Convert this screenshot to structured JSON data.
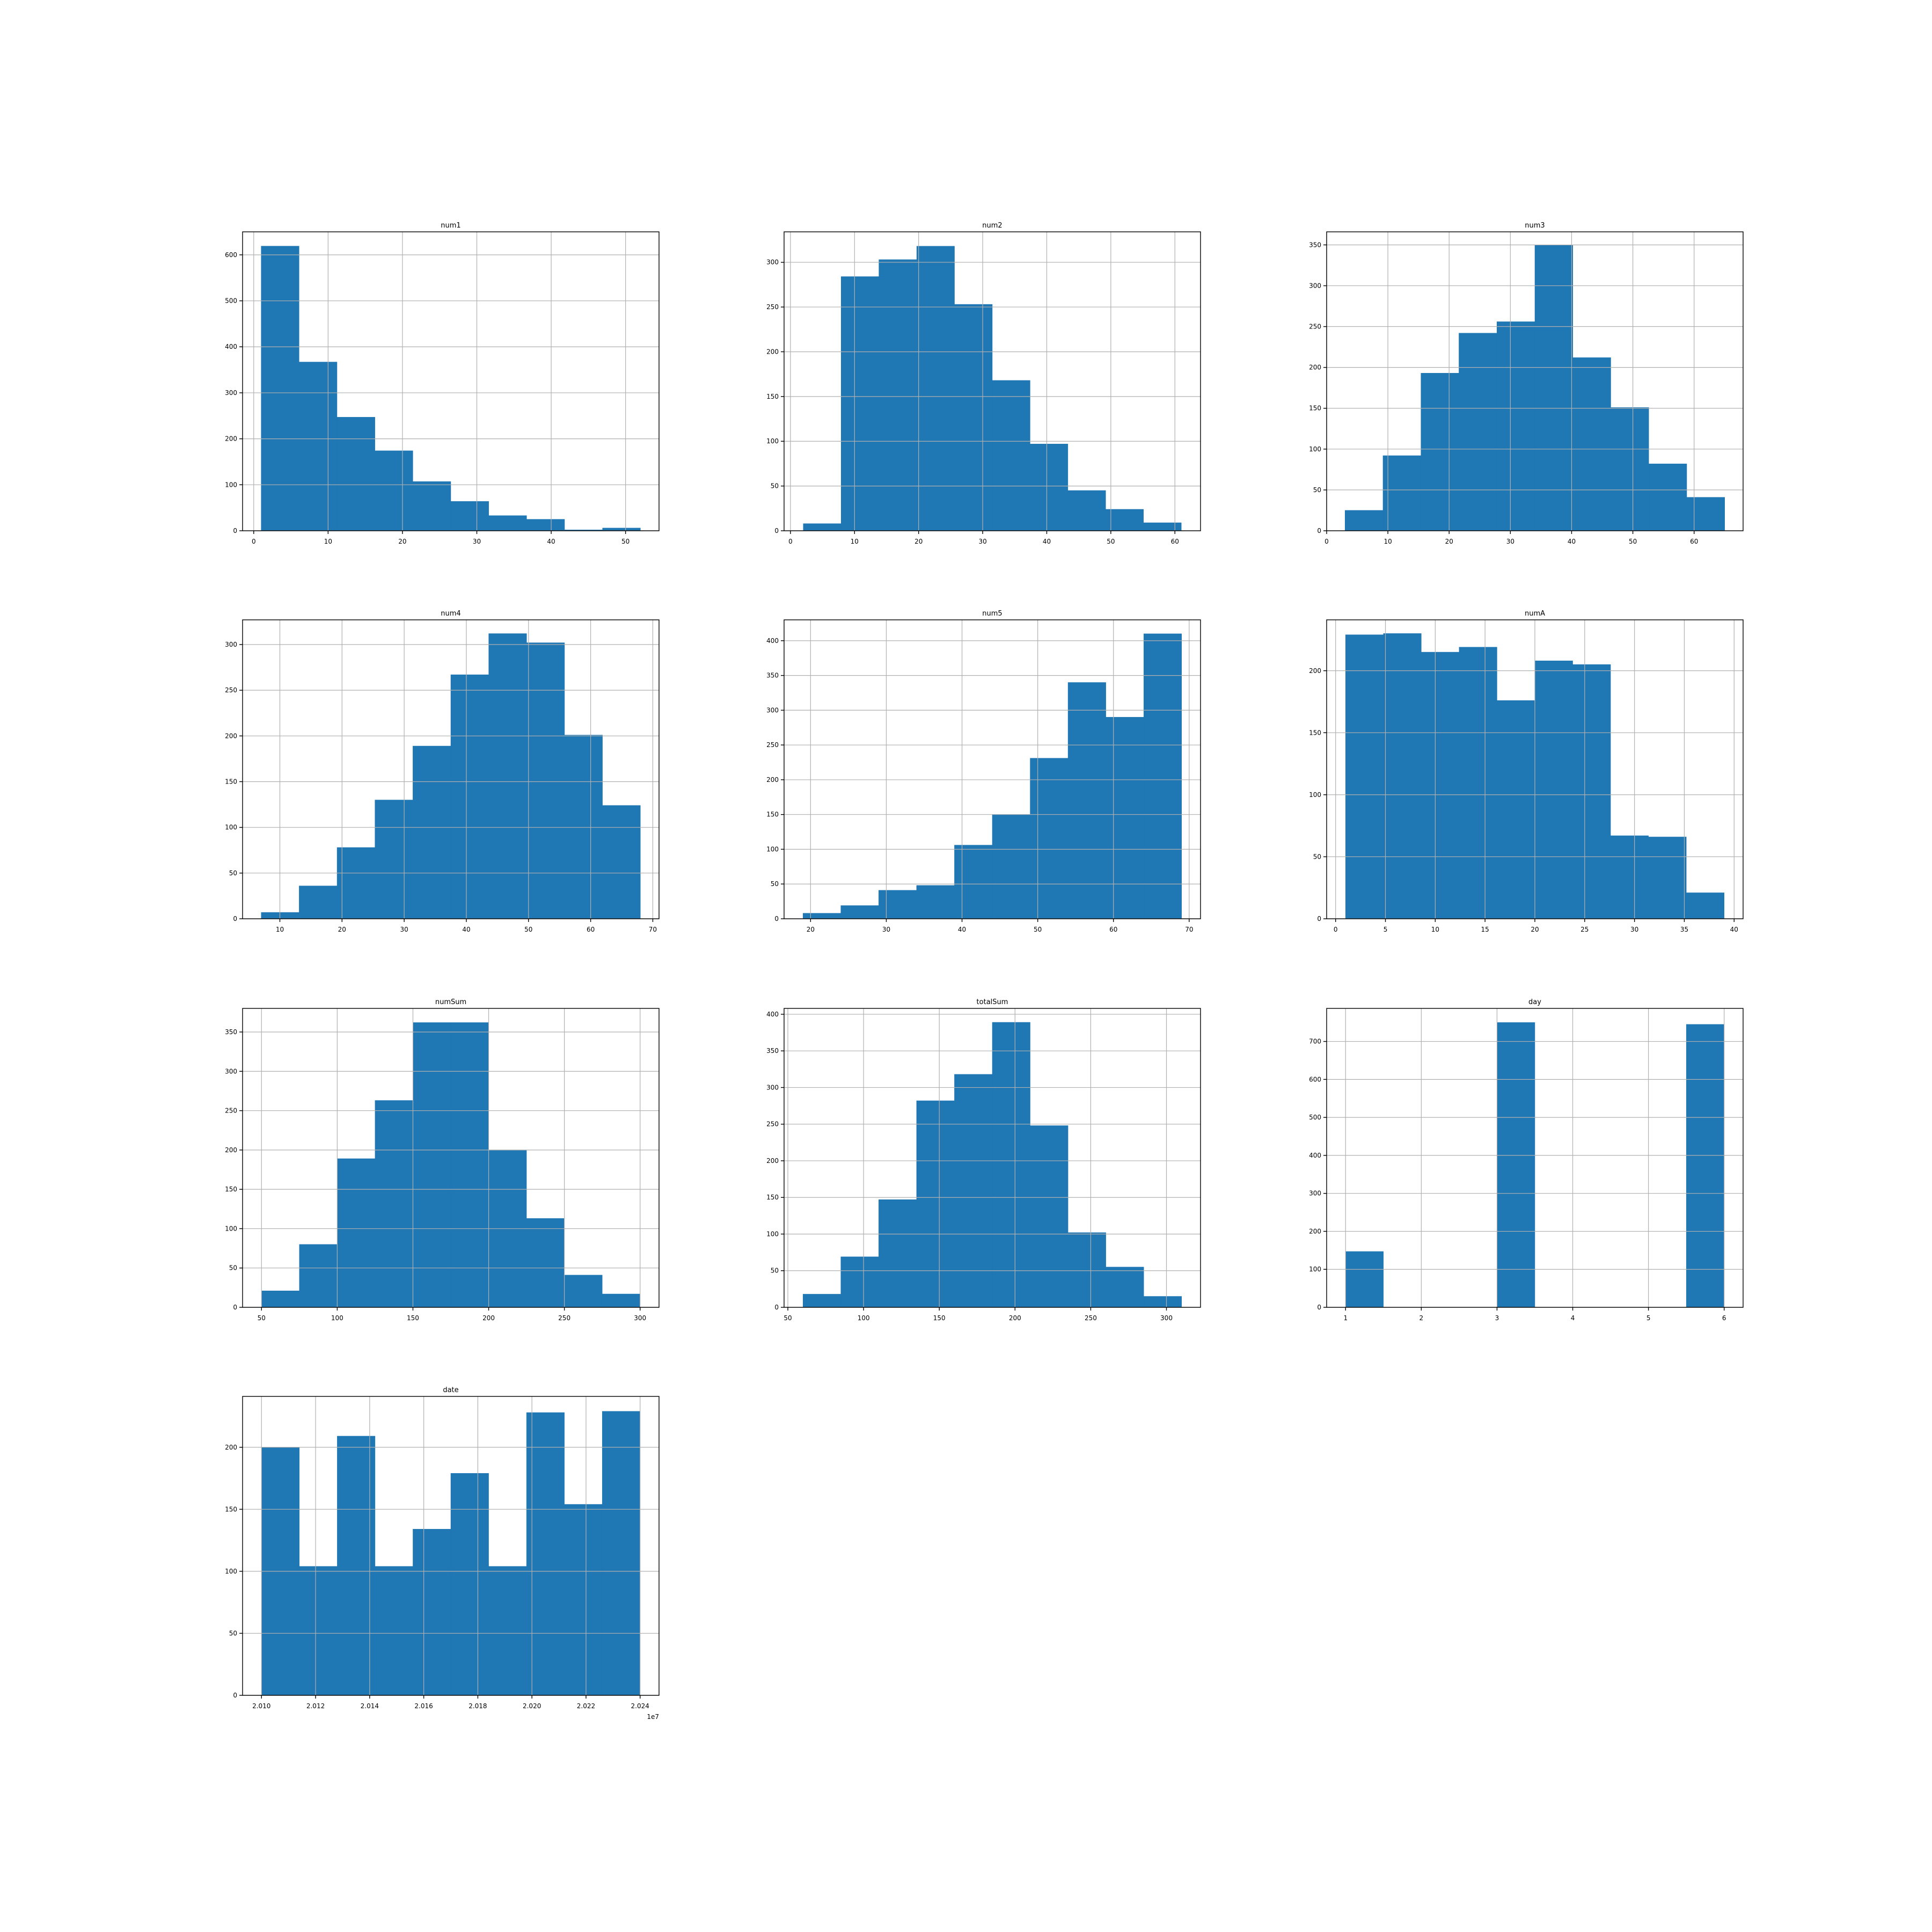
{
  "colors": {
    "bar": "#1f77b4",
    "bar_edge": "#1f77b4",
    "grid": "#b0b0b0",
    "axis": "#000000",
    "background": "#ffffff"
  },
  "chart_data": [
    {
      "type": "bar",
      "title": "num1",
      "grid": true,
      "bin_edges": [
        1.0,
        6.1,
        11.2,
        16.3,
        21.4,
        26.5,
        31.6,
        36.7,
        41.8,
        46.9,
        52.0
      ],
      "values": [
        619,
        367,
        247,
        174,
        107,
        64,
        33,
        25,
        2,
        6
      ],
      "xlim": [
        -1.5,
        54.5
      ],
      "ylim": [
        0,
        650
      ],
      "xticks": [
        0,
        10,
        20,
        30,
        40,
        50
      ],
      "xtick_labels": [
        "0",
        "10",
        "20",
        "30",
        "40",
        "50"
      ],
      "yticks": [
        0,
        100,
        200,
        300,
        400,
        500,
        600
      ],
      "ytick_labels": [
        "0",
        "100",
        "200",
        "300",
        "400",
        "500",
        "600"
      ]
    },
    {
      "type": "bar",
      "title": "num2",
      "grid": true,
      "bin_edges": [
        2.0,
        7.9,
        13.8,
        19.7,
        25.6,
        31.5,
        37.4,
        43.3,
        49.2,
        55.1,
        61.0
      ],
      "values": [
        8,
        284,
        303,
        318,
        253,
        168,
        97,
        45,
        24,
        9
      ],
      "xlim": [
        -1.0,
        64.0
      ],
      "ylim": [
        0,
        334
      ],
      "xticks": [
        0,
        10,
        20,
        30,
        40,
        50,
        60
      ],
      "xtick_labels": [
        "0",
        "10",
        "20",
        "30",
        "40",
        "50",
        "60"
      ],
      "yticks": [
        0,
        50,
        100,
        150,
        200,
        250,
        300
      ],
      "ytick_labels": [
        "0",
        "50",
        "100",
        "150",
        "200",
        "250",
        "300"
      ]
    },
    {
      "type": "bar",
      "title": "num3",
      "grid": true,
      "bin_edges": [
        3.0,
        9.2,
        15.4,
        21.6,
        27.8,
        34.0,
        40.2,
        46.4,
        52.6,
        58.8,
        65.0
      ],
      "values": [
        25,
        92,
        193,
        242,
        256,
        350,
        212,
        151,
        82,
        41
      ],
      "xlim": [
        0.0,
        68.0
      ],
      "ylim": [
        0,
        366
      ],
      "xticks": [
        0,
        10,
        20,
        30,
        40,
        50,
        60
      ],
      "xtick_labels": [
        "0",
        "10",
        "20",
        "30",
        "40",
        "50",
        "60"
      ],
      "yticks": [
        0,
        50,
        100,
        150,
        200,
        250,
        300,
        350
      ],
      "ytick_labels": [
        "0",
        "50",
        "100",
        "150",
        "200",
        "250",
        "300",
        "350"
      ]
    },
    {
      "type": "bar",
      "title": "num4",
      "grid": true,
      "bin_edges": [
        7.0,
        13.1,
        19.2,
        25.3,
        31.4,
        37.5,
        43.6,
        49.7,
        55.8,
        61.9,
        68.0
      ],
      "values": [
        7,
        36,
        78,
        130,
        189,
        267,
        312,
        302,
        201,
        124
      ],
      "xlim": [
        4.0,
        71.0
      ],
      "ylim": [
        0,
        327
      ],
      "xticks": [
        10,
        20,
        30,
        40,
        50,
        60,
        70
      ],
      "xtick_labels": [
        "10",
        "20",
        "30",
        "40",
        "50",
        "60",
        "70"
      ],
      "yticks": [
        0,
        50,
        100,
        150,
        200,
        250,
        300
      ],
      "ytick_labels": [
        "0",
        "50",
        "100",
        "150",
        "200",
        "250",
        "300"
      ]
    },
    {
      "type": "bar",
      "title": "num5",
      "grid": true,
      "bin_edges": [
        19.0,
        24.0,
        29.0,
        34.0,
        39.0,
        44.0,
        49.0,
        54.0,
        59.0,
        64.0,
        69.0
      ],
      "values": [
        8,
        19,
        41,
        48,
        106,
        150,
        231,
        340,
        290,
        410
      ],
      "xlim": [
        16.5,
        71.5
      ],
      "ylim": [
        0,
        430
      ],
      "xticks": [
        20,
        30,
        40,
        50,
        60,
        70
      ],
      "xtick_labels": [
        "20",
        "30",
        "40",
        "50",
        "60",
        "70"
      ],
      "yticks": [
        0,
        50,
        100,
        150,
        200,
        250,
        300,
        350,
        400
      ],
      "ytick_labels": [
        "0",
        "50",
        "100",
        "150",
        "200",
        "250",
        "300",
        "350",
        "400"
      ]
    },
    {
      "type": "bar",
      "title": "numA",
      "grid": true,
      "bin_edges": [
        1.0,
        4.8,
        8.6,
        12.4,
        16.2,
        20.0,
        23.8,
        27.6,
        31.4,
        35.2,
        39.0
      ],
      "values": [
        229,
        230,
        215,
        219,
        176,
        208,
        205,
        67,
        66,
        21
      ],
      "xlim": [
        -0.9,
        40.9
      ],
      "ylim": [
        0,
        241
      ],
      "xticks": [
        0,
        5,
        10,
        15,
        20,
        25,
        30,
        35,
        40
      ],
      "xtick_labels": [
        "0",
        "5",
        "10",
        "15",
        "20",
        "25",
        "30",
        "35",
        "40"
      ],
      "yticks": [
        0,
        50,
        100,
        150,
        200
      ],
      "ytick_labels": [
        "0",
        "50",
        "100",
        "150",
        "200"
      ]
    },
    {
      "type": "bar",
      "title": "numSum",
      "grid": true,
      "bin_edges": [
        50,
        75,
        100,
        125,
        150,
        175,
        200,
        225,
        250,
        275,
        300
      ],
      "values": [
        21,
        80,
        189,
        263,
        362,
        362,
        200,
        113,
        41,
        17
      ],
      "xlim": [
        37.5,
        312.5
      ],
      "ylim": [
        0,
        380
      ],
      "xticks": [
        50,
        100,
        150,
        200,
        250,
        300
      ],
      "xtick_labels": [
        "50",
        "100",
        "150",
        "200",
        "250",
        "300"
      ],
      "yticks": [
        0,
        50,
        100,
        150,
        200,
        250,
        300,
        350
      ],
      "ytick_labels": [
        "0",
        "50",
        "100",
        "150",
        "200",
        "250",
        "300",
        "350"
      ]
    },
    {
      "type": "bar",
      "title": "totalSum",
      "grid": true,
      "bin_edges": [
        60,
        85,
        110,
        135,
        160,
        185,
        210,
        235,
        260,
        285,
        310
      ],
      "values": [
        18,
        69,
        147,
        282,
        318,
        389,
        248,
        102,
        55,
        15
      ],
      "xlim": [
        47.5,
        322.5
      ],
      "ylim": [
        0,
        408
      ],
      "xticks": [
        50,
        100,
        150,
        200,
        250,
        300
      ],
      "xtick_labels": [
        "50",
        "100",
        "150",
        "200",
        "250",
        "300"
      ],
      "yticks": [
        0,
        50,
        100,
        150,
        200,
        250,
        300,
        350,
        400
      ],
      "ytick_labels": [
        "0",
        "50",
        "100",
        "150",
        "200",
        "250",
        "300",
        "350",
        "400"
      ]
    },
    {
      "type": "bar",
      "title": "day",
      "grid": true,
      "bin_edges": [
        1.0,
        1.5,
        2.0,
        2.5,
        3.0,
        3.5,
        4.0,
        4.5,
        5.0,
        5.5,
        6.0
      ],
      "values": [
        147,
        0,
        0,
        0,
        750,
        0,
        0,
        0,
        0,
        745
      ],
      "xlim": [
        0.75,
        6.25
      ],
      "ylim": [
        0,
        787
      ],
      "xticks": [
        1,
        2,
        3,
        4,
        5,
        6
      ],
      "xtick_labels": [
        "1",
        "2",
        "3",
        "4",
        "5",
        "6"
      ],
      "yticks": [
        0,
        100,
        200,
        300,
        400,
        500,
        600,
        700
      ],
      "ytick_labels": [
        "0",
        "100",
        "200",
        "300",
        "400",
        "500",
        "600",
        "700"
      ]
    },
    {
      "type": "bar",
      "title": "date",
      "grid": true,
      "bin_edges": [
        20100000,
        20114000,
        20128000,
        20142000,
        20156000,
        20170000,
        20184000,
        20198000,
        20212000,
        20226000,
        20240000
      ],
      "values": [
        200,
        104,
        209,
        104,
        134,
        179,
        104,
        228,
        154,
        229
      ],
      "xlim": [
        20093000,
        20247000
      ],
      "ylim": [
        0,
        241
      ],
      "xticks": [
        20100000,
        20120000,
        20140000,
        20160000,
        20180000,
        20200000,
        20220000,
        20240000
      ],
      "xtick_labels": [
        "2.010",
        "2.012",
        "2.014",
        "2.016",
        "2.018",
        "2.020",
        "2.022",
        "2.024"
      ],
      "yticks": [
        0,
        50,
        100,
        150,
        200
      ],
      "ytick_labels": [
        "0",
        "50",
        "100",
        "150",
        "200"
      ],
      "offset_label": "1e7"
    }
  ]
}
